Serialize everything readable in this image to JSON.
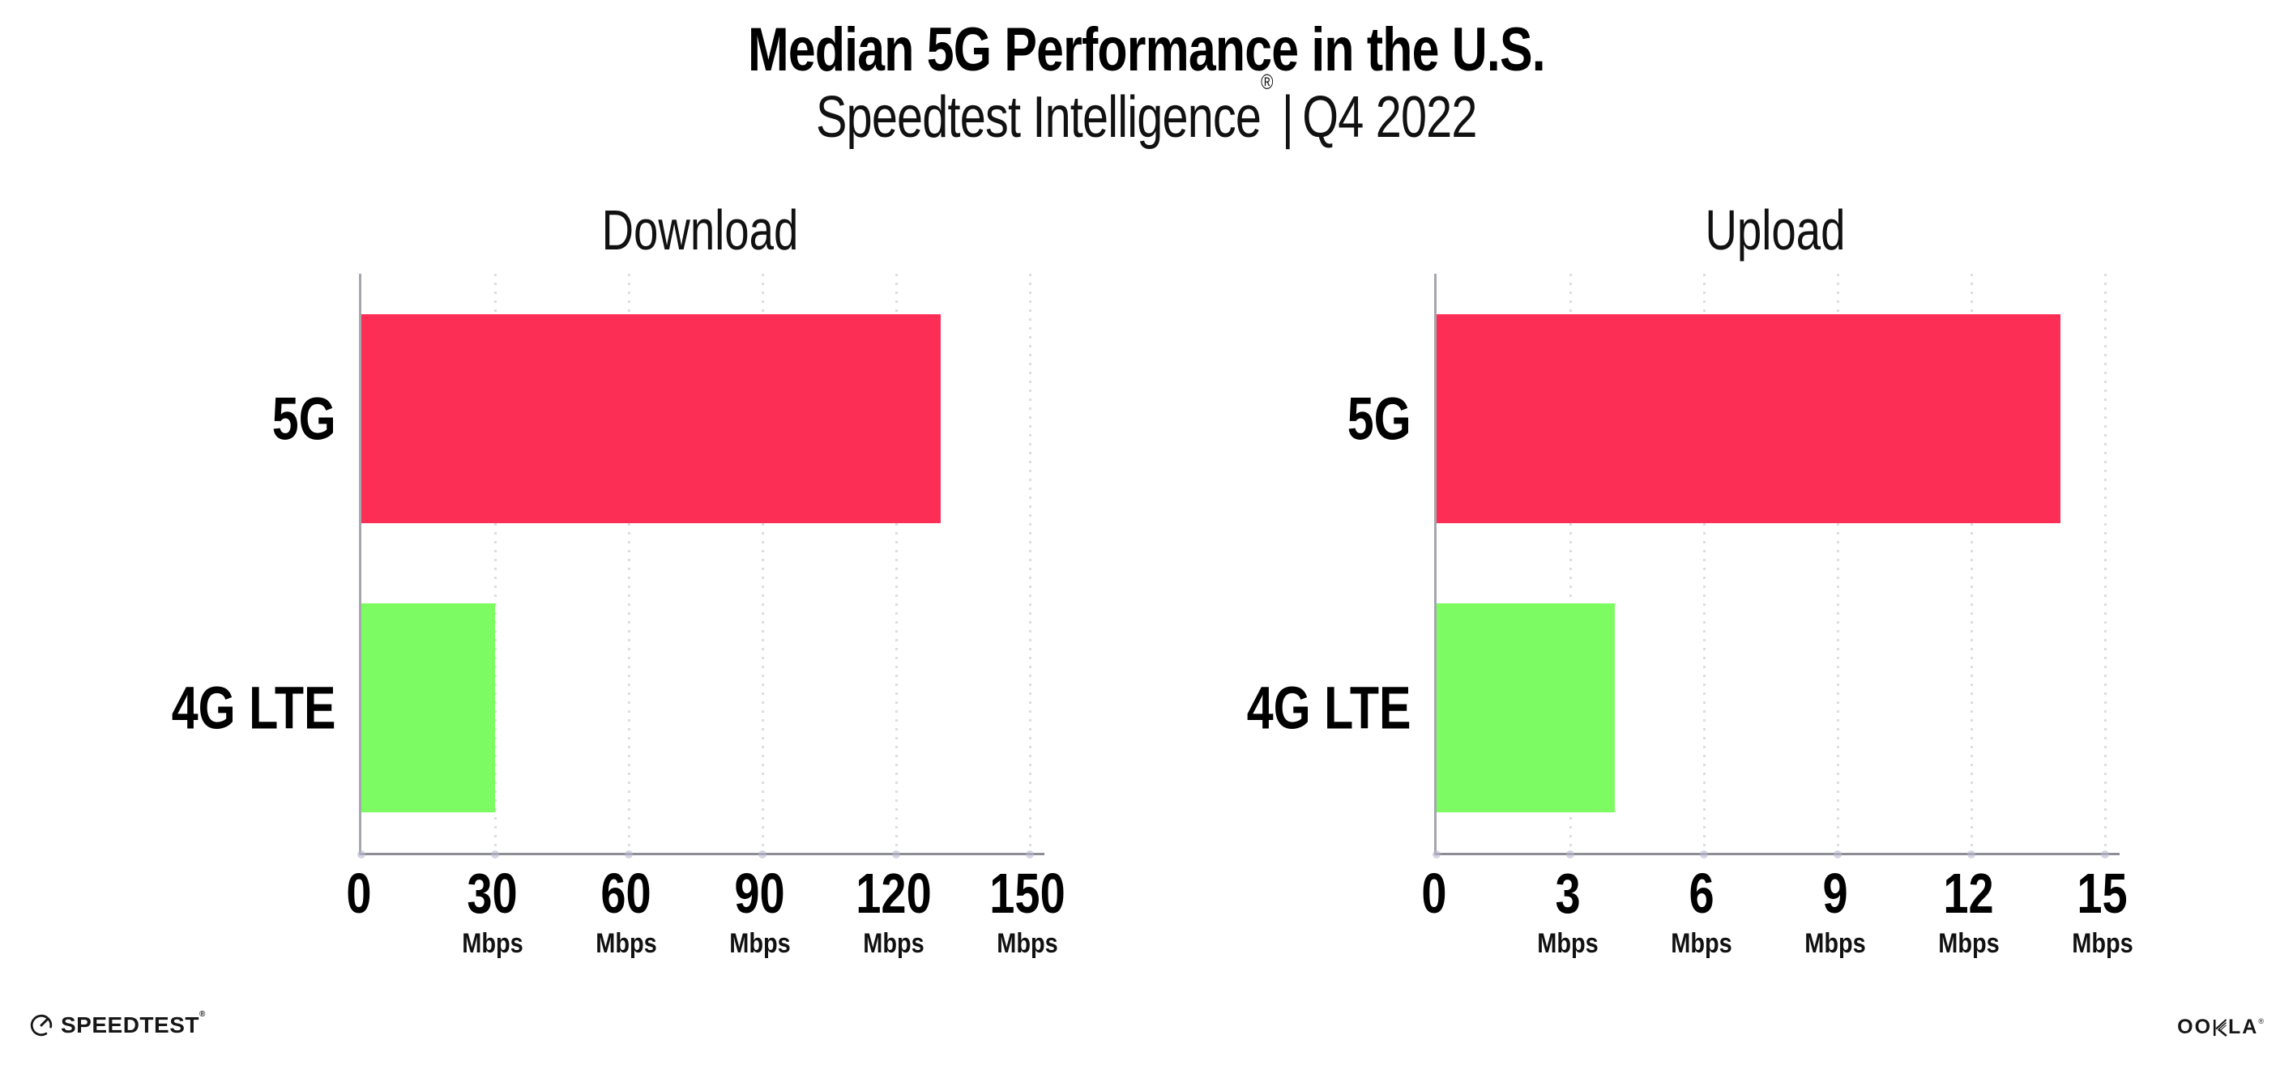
{
  "title": "Median 5G Performance in the U.S.",
  "subtitle": {
    "brand": "Speedtest Intelligence",
    "mark": "®",
    "separator": "|",
    "period": "Q4 2022"
  },
  "colors": {
    "bar_5g": "#FD2E56",
    "bar_4g_lte": "#7DFB62",
    "gridline": "#dcdde5",
    "y_axis": "#a6a6ae",
    "x_axis": "#8d8d95",
    "text": "#000000"
  },
  "chart_data": [
    {
      "type": "bar",
      "orientation": "horizontal",
      "title": "Download",
      "categories": [
        "5G",
        "4G LTE"
      ],
      "values": [
        130,
        30
      ],
      "unit": "Mbps",
      "xlim": [
        0,
        150
      ],
      "xticks": [
        0,
        30,
        60,
        90,
        120,
        150
      ],
      "xtick_unit": "Mbps",
      "unit_shown_on_zero_tick": false,
      "bar_colors": [
        "#FD2E56",
        "#7DFB62"
      ],
      "grid": "vertical-dotted",
      "legend": "none"
    },
    {
      "type": "bar",
      "orientation": "horizontal",
      "title": "Upload",
      "categories": [
        "5G",
        "4G LTE"
      ],
      "values": [
        14,
        4
      ],
      "unit": "Mbps",
      "xlim": [
        0,
        15
      ],
      "xticks": [
        0,
        3,
        6,
        9,
        12,
        15
      ],
      "xtick_unit": "Mbps",
      "unit_shown_on_zero_tick": false,
      "bar_colors": [
        "#FD2E56",
        "#7DFB62"
      ],
      "grid": "vertical-dotted",
      "legend": "none"
    }
  ],
  "footer": {
    "speedtest": {
      "icon": "gauge-icon",
      "text": "SPEEDTEST",
      "mark": "®"
    },
    "ookla": {
      "text_left": "OO",
      "k_icon": "ookla-k-glyph",
      "text_right": "LA",
      "mark": "®"
    }
  }
}
